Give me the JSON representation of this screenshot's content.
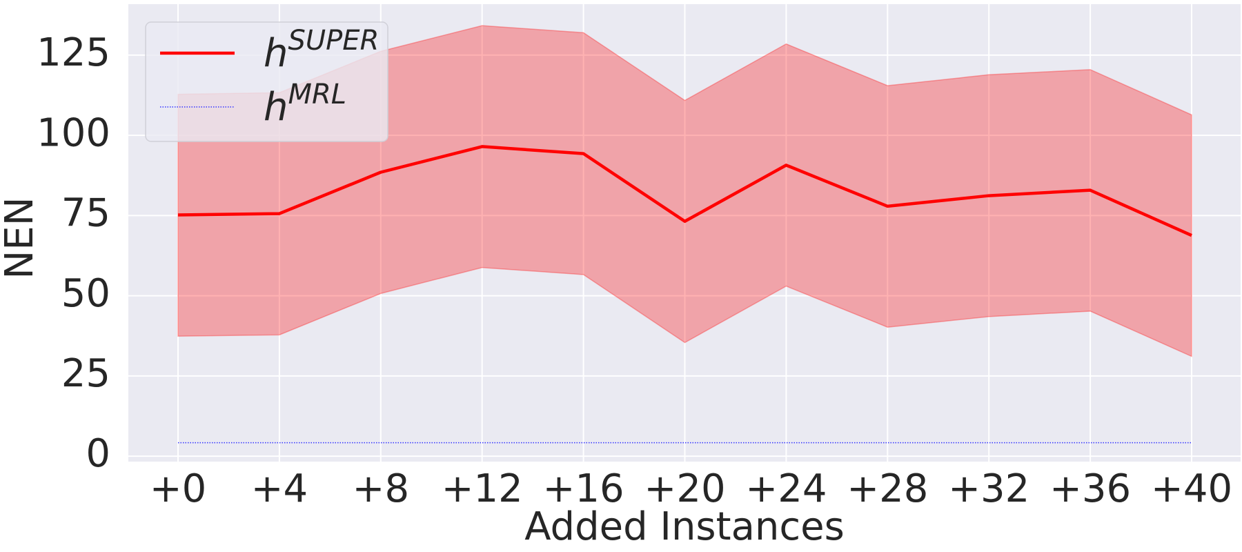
{
  "chart_data": {
    "type": "line",
    "xlabel": "Added Instances",
    "ylabel": "NEN",
    "categories": [
      "+0",
      "+4",
      "+8",
      "+12",
      "+16",
      "+20",
      "+24",
      "+28",
      "+32",
      "+36",
      "+40"
    ],
    "series": [
      {
        "name": "hSUPER",
        "color": "#ff0000",
        "style": "solid",
        "values": [
          75.2,
          75.6,
          88.5,
          96.5,
          94.3,
          73.2,
          90.7,
          77.9,
          81.2,
          82.9,
          68.8
        ],
        "upper": [
          112.8,
          113.3,
          126.2,
          134.2,
          132.0,
          110.9,
          128.5,
          115.5,
          118.9,
          120.5,
          106.4
        ],
        "lower": [
          37.4,
          37.8,
          50.7,
          58.8,
          56.6,
          35.4,
          53.0,
          40.2,
          43.5,
          45.2,
          31.1
        ]
      },
      {
        "name": "hMRL",
        "color": "#3333ff",
        "style": "dotted",
        "values": [
          4.2,
          4.2,
          4.2,
          4.2,
          4.2,
          4.2,
          4.2,
          4.2,
          4.2,
          4.2,
          4.2
        ]
      }
    ],
    "ylim": [
      -1.7,
      140.9
    ],
    "yticks": [
      0,
      25,
      50,
      75,
      100,
      125
    ],
    "grid": true,
    "legend": "upper left"
  }
}
